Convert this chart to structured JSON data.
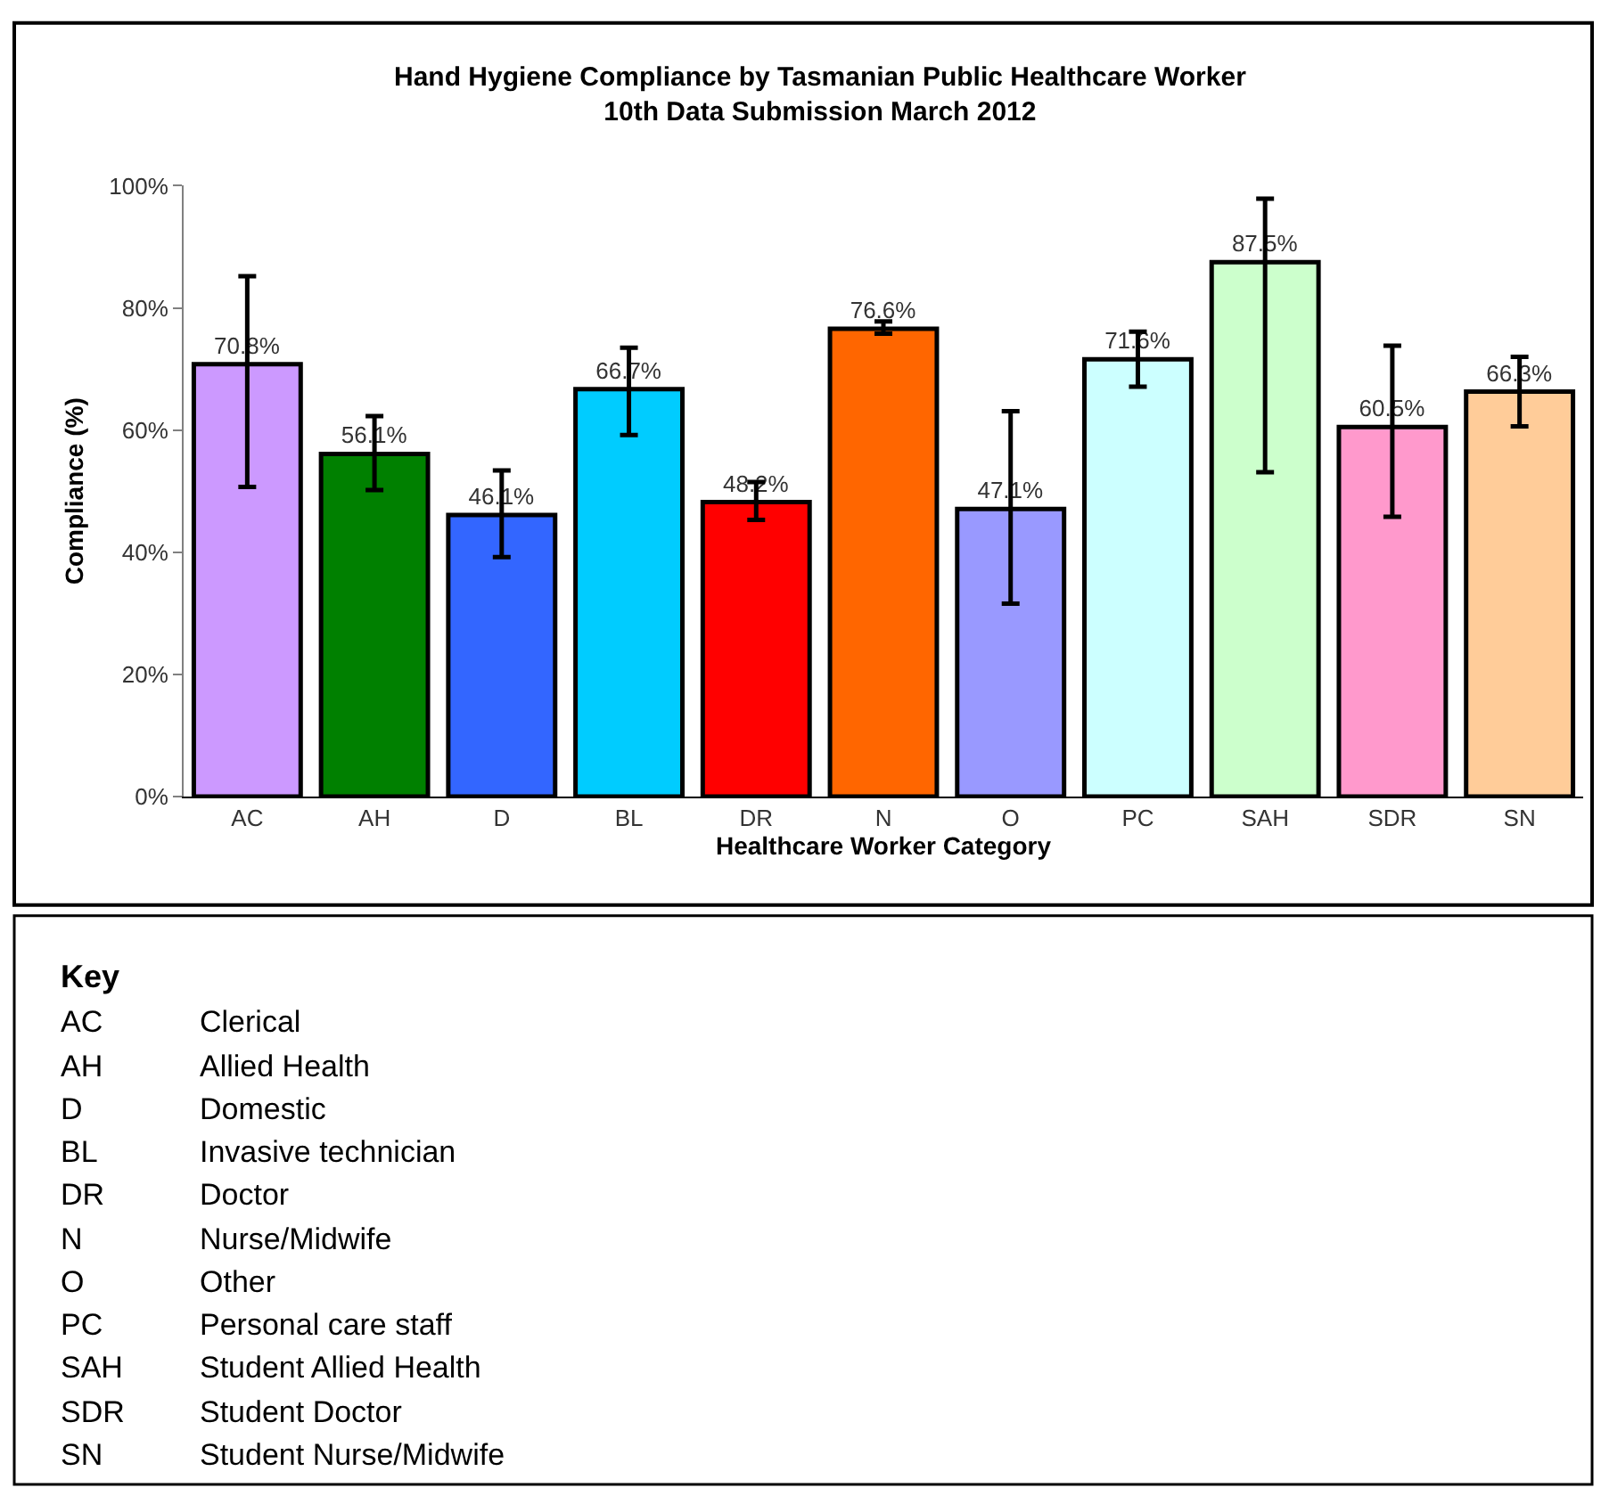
{
  "chart_data": [
    {
      "type": "bar",
      "title": "Hand Hygiene Compliance by Tasmanian Public Healthcare Worker",
      "subtitle": "10th Data Submission March 2012",
      "xlabel": "Healthcare Worker Category",
      "ylabel": "Compliance (%)",
      "categories": [
        "AC",
        "AH",
        "D",
        "BL",
        "DR",
        "N",
        "O",
        "PC",
        "SAH",
        "SDR",
        "SN"
      ],
      "values": [
        70.8,
        56.1,
        46.1,
        66.7,
        48.2,
        76.6,
        47.1,
        71.6,
        87.5,
        60.5,
        66.3
      ],
      "value_labels": [
        "70.8%",
        "56.1%",
        "46.1%",
        "66.7%",
        "48.2%",
        "76.6%",
        "47.1%",
        "71.6%",
        "87.5%",
        "60.5%",
        "66.3%"
      ],
      "colors": [
        "#cc99ff",
        "#008000",
        "#3366ff",
        "#00ccff",
        "#ff0000",
        "#ff6600",
        "#9999ff",
        "#ccffff",
        "#ccffcc",
        "#ff99cc",
        "#ffcc99"
      ],
      "errors": [
        [
          50.7,
          85.2
        ],
        [
          50.2,
          62.3
        ],
        [
          39.2,
          53.4
        ],
        [
          59.2,
          73.5
        ],
        [
          45.3,
          51.5
        ],
        [
          75.8,
          77.8
        ],
        [
          31.6,
          63.1
        ],
        [
          67.1,
          76.1
        ],
        [
          53.1,
          97.9
        ],
        [
          45.8,
          73.8
        ],
        [
          60.6,
          72.0
        ]
      ],
      "ylim": [
        0,
        100
      ],
      "yticks": [
        {
          "value": 0,
          "label": "0%"
        },
        {
          "value": 20,
          "label": "20%"
        },
        {
          "value": 40,
          "label": "40%"
        },
        {
          "value": 60,
          "label": "60%"
        },
        {
          "value": 80,
          "label": "80%"
        },
        {
          "value": 100,
          "label": "100%"
        }
      ]
    },
    {
      "type": "other",
      "title": "Key",
      "annotations": [
        "AC Clerical",
        "AH Allied Health",
        "D Domestic",
        "BL Invasive technician",
        "DR Doctor",
        "N Nurse/Midwife",
        "O Other",
        "PC Personal care staff",
        "SAH Student Allied Health",
        "SDR Student Doctor",
        "SN Student Nurse/Midwife"
      ]
    }
  ]
}
